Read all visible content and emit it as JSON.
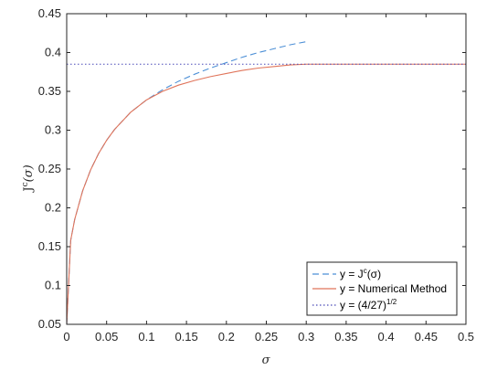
{
  "chart_data": {
    "type": "line",
    "xlabel": "σ",
    "ylabel": "J",
    "ylabel_sup": "c",
    "ylabel_tail": "(σ)",
    "xlim": [
      0,
      0.5
    ],
    "ylim": [
      0.05,
      0.45
    ],
    "x_ticks": [
      0,
      0.05,
      0.1,
      0.15,
      0.2,
      0.25,
      0.3,
      0.35,
      0.4,
      0.45,
      0.5
    ],
    "x_tick_labels": [
      "0",
      "0.05",
      "0.1",
      "0.15",
      "0.2",
      "0.25",
      "0.3",
      "0.35",
      "0.4",
      "0.45",
      "0.5"
    ],
    "y_ticks": [
      0.05,
      0.1,
      0.15,
      0.2,
      0.25,
      0.3,
      0.35,
      0.4,
      0.45
    ],
    "y_tick_labels": [
      "0.05",
      "0.1",
      "0.15",
      "0.2",
      "0.25",
      "0.3",
      "0.35",
      "0.4",
      "0.45"
    ],
    "grid": false,
    "legend_position": "bottom-right",
    "series": [
      {
        "name": "y = Jc(σ)",
        "legend_main": "y = J",
        "legend_sup": "c",
        "legend_tail": "(σ)",
        "color": "#4c8fd6",
        "style": "dashed",
        "x": [
          0,
          0.005,
          0.01,
          0.02,
          0.03,
          0.04,
          0.05,
          0.06,
          0.08,
          0.1,
          0.12,
          0.14,
          0.16,
          0.18,
          0.2,
          0.22,
          0.24,
          0.26,
          0.28,
          0.3
        ],
        "y": [
          0.05,
          0.158,
          0.185,
          0.222,
          0.249,
          0.27,
          0.287,
          0.301,
          0.323,
          0.339,
          0.352,
          0.363,
          0.372,
          0.38,
          0.387,
          0.394,
          0.4,
          0.405,
          0.41,
          0.414
        ]
      },
      {
        "name": "y = Numerical Method",
        "legend_main": "y = Numerical Method",
        "color": "#e0745a",
        "style": "solid",
        "x": [
          0,
          0.005,
          0.01,
          0.02,
          0.03,
          0.04,
          0.05,
          0.06,
          0.08,
          0.1,
          0.12,
          0.14,
          0.16,
          0.18,
          0.2,
          0.22,
          0.24,
          0.26,
          0.28,
          0.3,
          0.32,
          0.35,
          0.4,
          0.45,
          0.5
        ],
        "y": [
          0.05,
          0.158,
          0.185,
          0.222,
          0.249,
          0.27,
          0.287,
          0.301,
          0.323,
          0.339,
          0.35,
          0.358,
          0.364,
          0.369,
          0.373,
          0.377,
          0.38,
          0.382,
          0.384,
          0.385,
          0.385,
          0.385,
          0.385,
          0.385,
          0.385
        ]
      },
      {
        "name": "y = (4/27)1/2",
        "legend_main": "y = (4/27)",
        "legend_sup": "1/2",
        "legend_tail": "",
        "color": "#4a4ab8",
        "style": "dotted",
        "x": [
          0,
          0.5
        ],
        "y": [
          0.385,
          0.385
        ]
      }
    ]
  }
}
